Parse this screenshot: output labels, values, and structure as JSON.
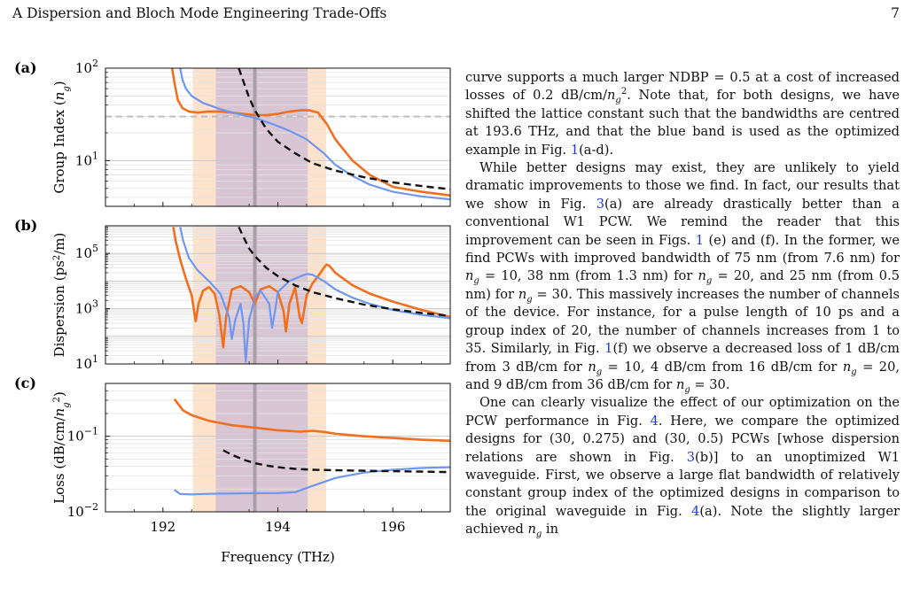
{
  "header": {
    "section": "A   Dispersion and Bloch Mode Engineering Trade-Offs",
    "page_number": "7"
  },
  "figure": {
    "xlabel": "Frequency (THz)",
    "colors": {
      "orange": "#f07020",
      "blue": "#6f96f0",
      "black": "#111111",
      "orange_band": "#fde2cc",
      "purple_band": "#d9c6d4",
      "center_line": "#a8a0a6",
      "target": "#bdbdbd"
    },
    "bands": {
      "orange": [
        192.52,
        194.84
      ],
      "purple": [
        192.92,
        194.52
      ],
      "center": 193.6
    },
    "panels": [
      {
        "label": "(a)",
        "ylabel_html": "Group Index (<tspan font-style='italic'>n</tspan><tspan font-style='italic' baseline-shift='sub' font-size='10'>g</tspan>)",
        "yscale": "log",
        "ylim": [
          3.2,
          100
        ],
        "ytick_labels": [
          {
            "base": "10",
            "exp": "2",
            "value": 100
          },
          {
            "base": "10",
            "exp": "1",
            "value": 10
          }
        ],
        "target_line": 30
      },
      {
        "label": "(b)",
        "ylabel_html": "Dispersion (ps<tspan baseline-shift='super' font-size='10'>2</tspan>/m)",
        "yscale": "log",
        "ylim": [
          10,
          1000000
        ],
        "ytick_labels": [
          {
            "base": "10",
            "exp": "5",
            "value": 100000
          },
          {
            "base": "10",
            "exp": "3",
            "value": 1000
          },
          {
            "base": "10",
            "exp": "1",
            "value": 10
          }
        ]
      },
      {
        "label": "(c)",
        "ylabel_html": "Loss (dB/cm/<tspan font-style='italic'>n</tspan><tspan font-style='italic' baseline-shift='sub' font-size='10'>g</tspan><tspan baseline-shift='super' font-size='10'>2</tspan>)",
        "yscale": "log",
        "ylim": [
          0.01,
          0.5
        ],
        "ytick_labels": [
          {
            "base": "10",
            "exp": "−1",
            "value": 0.1
          },
          {
            "base": "10",
            "exp": "−2",
            "value": 0.01
          }
        ]
      }
    ],
    "xticks": [
      192,
      194,
      196
    ],
    "xlim": [
      191,
      197
    ]
  },
  "chart_data": [
    {
      "type": "line",
      "panel": "(a)",
      "xlabel": "",
      "ylabel": "Group Index (n_g)",
      "xlim": [
        191,
        197
      ],
      "ylim": [
        3.2,
        100
      ],
      "yscale": "log",
      "series": [
        {
          "color": "orange",
          "style": "solid",
          "x": [
            192.16,
            192.2,
            192.26,
            192.34,
            192.45,
            192.6,
            192.8,
            193.0,
            193.2,
            193.4,
            193.6,
            193.8,
            194.0,
            194.2,
            194.4,
            194.55,
            194.7,
            194.85,
            195.0,
            195.3,
            195.6,
            196.0,
            196.5,
            197.0
          ],
          "y": [
            100,
            70,
            45,
            37,
            34,
            33,
            34,
            34,
            33,
            32,
            31,
            31,
            32,
            34,
            35,
            35,
            33,
            25,
            17,
            10,
            7,
            5.2,
            4.6,
            4.2
          ]
        },
        {
          "color": "blue",
          "style": "solid",
          "x": [
            192.3,
            192.34,
            192.4,
            192.5,
            192.7,
            193.0,
            193.3,
            193.6,
            193.9,
            194.2,
            194.5,
            194.8,
            195.0,
            195.3,
            195.6,
            196.0,
            196.5,
            197.0
          ],
          "y": [
            100,
            75,
            60,
            50,
            42,
            36,
            32,
            29,
            25,
            21,
            17,
            12,
            9,
            6.8,
            5.5,
            4.6,
            4.1,
            3.8
          ]
        },
        {
          "color": "black",
          "style": "dashed",
          "x": [
            193.32,
            193.4,
            193.5,
            193.6,
            193.8,
            194.0,
            194.3,
            194.6,
            195.0,
            195.5,
            196.0,
            196.5,
            197.0
          ],
          "y": [
            100,
            72,
            48,
            35,
            22,
            16,
            12,
            9.4,
            7.8,
            6.6,
            5.8,
            5.3,
            4.9
          ]
        }
      ]
    },
    {
      "type": "line",
      "panel": "(b)",
      "xlabel": "",
      "ylabel": "Dispersion (ps^2/m)",
      "xlim": [
        191,
        197
      ],
      "ylim": [
        10,
        1000000
      ],
      "yscale": "log",
      "series": [
        {
          "color": "orange",
          "style": "solid",
          "x": [
            192.18,
            192.22,
            192.3,
            192.4,
            192.5,
            192.57,
            192.62,
            192.7,
            192.8,
            192.9,
            192.98,
            193.05,
            193.1,
            193.2,
            193.35,
            193.5,
            193.6,
            193.7,
            193.85,
            194.0,
            194.1,
            194.14,
            194.2,
            194.3,
            194.38,
            194.42,
            194.5,
            194.6,
            194.7,
            194.8,
            194.85,
            194.9,
            195.0,
            195.3,
            195.6,
            196.0,
            196.5,
            197.0
          ],
          "y": [
            900000,
            300000,
            60000,
            12000,
            3000,
            350,
            1500,
            4500,
            6000,
            3500,
            600,
            40,
            500,
            5000,
            6500,
            4000,
            1500,
            5000,
            6500,
            4000,
            800,
            150,
            1500,
            6000,
            500,
            300,
            3000,
            8000,
            15000,
            30000,
            40000,
            35000,
            20000,
            7000,
            3500,
            1800,
            900,
            500
          ]
        },
        {
          "color": "blue",
          "style": "solid",
          "x": [
            192.3,
            192.35,
            192.45,
            192.6,
            192.8,
            193.0,
            193.15,
            193.2,
            193.26,
            193.35,
            193.4,
            193.44,
            193.5,
            193.6,
            193.7,
            193.85,
            193.9,
            193.95,
            194.0,
            194.2,
            194.4,
            194.5,
            194.6,
            194.8,
            195.0,
            195.3,
            195.6,
            196.0,
            196.5,
            197.0
          ],
          "y": [
            900000,
            300000,
            70000,
            25000,
            10000,
            3500,
            500,
            80,
            400,
            1500,
            300,
            12,
            400,
            2500,
            4500,
            1500,
            200,
            800,
            4000,
            10000,
            15000,
            18000,
            17000,
            10000,
            5000,
            2500,
            1500,
            900,
            600,
            450
          ]
        },
        {
          "color": "black",
          "style": "dashed",
          "x": [
            193.32,
            193.4,
            193.5,
            193.6,
            193.8,
            194.0,
            194.3,
            194.6,
            195.0,
            195.5,
            196.0,
            196.5,
            197.0
          ],
          "y": [
            900000,
            400000,
            150000,
            80000,
            30000,
            15000,
            7000,
            4000,
            2400,
            1400,
            950,
            700,
            550
          ]
        }
      ]
    },
    {
      "type": "line",
      "panel": "(c)",
      "xlabel": "Frequency (THz)",
      "ylabel": "Loss (dB/cm/n_g^2)",
      "xlim": [
        191,
        197
      ],
      "ylim": [
        0.01,
        0.5
      ],
      "yscale": "log",
      "series": [
        {
          "color": "orange",
          "style": "solid",
          "x": [
            192.2,
            192.35,
            192.5,
            192.8,
            193.2,
            193.6,
            194.0,
            194.4,
            194.6,
            194.8,
            195.0,
            195.5,
            196.0,
            196.5,
            197.0
          ],
          "y": [
            0.31,
            0.22,
            0.19,
            0.16,
            0.14,
            0.13,
            0.12,
            0.115,
            0.118,
            0.114,
            0.108,
            0.1,
            0.095,
            0.09,
            0.087
          ]
        },
        {
          "color": "blue",
          "style": "solid",
          "x": [
            192.2,
            192.3,
            192.5,
            192.8,
            193.2,
            193.6,
            194.0,
            194.3,
            194.6,
            195.0,
            195.5,
            196.0,
            196.5,
            197.0
          ],
          "y": [
            0.0195,
            0.0172,
            0.017,
            0.0173,
            0.0175,
            0.0176,
            0.0177,
            0.0182,
            0.022,
            0.028,
            0.033,
            0.036,
            0.038,
            0.039
          ]
        },
        {
          "color": "black",
          "style": "dashed",
          "x": [
            193.05,
            193.2,
            193.4,
            193.6,
            193.8,
            194.0,
            194.3,
            194.6,
            195.0,
            195.5,
            196.0,
            196.5,
            197.0
          ],
          "y": [
            0.065,
            0.057,
            0.049,
            0.044,
            0.041,
            0.039,
            0.037,
            0.036,
            0.0355,
            0.035,
            0.0345,
            0.034,
            0.0335
          ]
        }
      ]
    }
  ],
  "body": {
    "paragraphs": [
      [
        "curve supports a much larger NDBP = 0.5 at a cost of increased losses of 0.2 dB/cm/",
        {
          "i": "n"
        },
        {
          "sub": "g"
        },
        {
          "sup": "2"
        },
        ". Note that, for both designs, we have shifted the lattice constant such that the bandwidths are centred at 193.6 THz, and that the blue band is used as the optimized example in Fig. ",
        {
          "ref": "1"
        },
        "(a-d)."
      ],
      [
        "While better designs may exist, they are unlikely to yield dramatic improvements to those we find. In fact, our results that we show in Fig. ",
        {
          "ref": "3"
        },
        "(a) are already drastically better than a conventional W1 PCW. We remind the reader that this improvement can be seen in Figs. ",
        {
          "ref": "1"
        },
        " (e) and (f). In the former, we find PCWs with improved bandwidth of 75 nm (from 7.6 nm) for ",
        {
          "i": "n"
        },
        {
          "sub": "g"
        },
        " = 10, 38 nm (from 1.3 nm) for ",
        {
          "i": "n"
        },
        {
          "sub": "g"
        },
        " = 20, and 25 nm (from 0.5 nm) for ",
        {
          "i": "n"
        },
        {
          "sub": "g"
        },
        " = 30. This massively increases the number of channels of the device. For instance, for a pulse length of 10 ps and a group index of 20, the number of channels increases from 1 to 35. Similarly, in Fig. ",
        {
          "ref": "1"
        },
        "(f) we observe a decreased loss of 1 dB/cm from 3 dB/cm for ",
        {
          "i": "n"
        },
        {
          "sub": "g"
        },
        " = 10, 4 dB/cm from 16 dB/cm for ",
        {
          "i": "n"
        },
        {
          "sub": "g"
        },
        " = 20, and 9 dB/cm from 36 dB/cm for ",
        {
          "i": "n"
        },
        {
          "sub": "g"
        },
        " = 30."
      ],
      [
        "One can clearly visualize the effect of our optimization on the PCW performance in Fig. ",
        {
          "ref": "4"
        },
        ". Here, we compare the optimized designs for (30, 0.275) and (30, 0.5) PCWs [whose dispersion relations are shown in Fig. ",
        {
          "ref": "3"
        },
        "(b)] to an unoptimized W1 waveguide. First, we observe a large flat bandwidth of relatively constant group index of the optimized designs in comparison to the original waveguide in Fig. ",
        {
          "ref": "4"
        },
        "(a). Note the slightly larger achieved ",
        {
          "i": "n"
        },
        {
          "sub": "g"
        },
        " in"
      ]
    ]
  }
}
